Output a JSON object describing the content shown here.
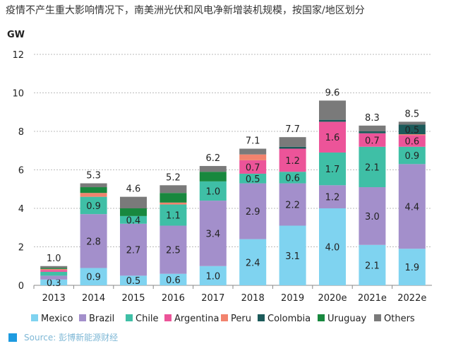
{
  "title": "疫情不产生重大影响情况下，南美洲光伏和风电净新增装机规模，按国家/地区划分",
  "source": "Source: 彭博新能源财经",
  "chart_data": {
    "type": "bar",
    "stacked": true,
    "title": "疫情不产生重大影响情况下，南美洲光伏和风电净新增装机规模，按国家/地区划分",
    "ylabel": "GW",
    "ylim": [
      0,
      12
    ],
    "yticks": [
      0,
      2,
      4,
      6,
      8,
      10,
      12
    ],
    "grid": true,
    "legend": "bottom",
    "categories": [
      "2013",
      "2014",
      "2015",
      "2016",
      "2017",
      "2018",
      "2019",
      "2020e",
      "2021e",
      "2022e"
    ],
    "totals": [
      "1.0",
      "5.3",
      "4.6",
      "5.2",
      "6.2",
      "7.1",
      "7.7",
      "9.6",
      "8.3",
      "8.5"
    ],
    "series": [
      {
        "name": "Mexico",
        "color": "#7fd3f0",
        "values": [
          0.3,
          0.9,
          0.5,
          0.6,
          1.0,
          2.4,
          3.1,
          4.0,
          2.1,
          1.9
        ],
        "labels": [
          "0.3",
          "0.9",
          "0.5",
          "0.6",
          "1.0",
          "2.4",
          "3.1",
          "4.0",
          "2.1",
          "1.9"
        ]
      },
      {
        "name": "Brazil",
        "color": "#a38fcb",
        "values": [
          0.2,
          2.8,
          2.7,
          2.5,
          3.4,
          2.9,
          2.2,
          1.2,
          3.0,
          4.4
        ],
        "labels": [
          null,
          "2.8",
          "2.7",
          "2.5",
          "3.4",
          "2.9",
          "2.2",
          "1.2",
          "3.0",
          "4.4"
        ]
      },
      {
        "name": "Chile",
        "color": "#3fbfa6",
        "values": [
          0.2,
          0.9,
          0.4,
          1.1,
          1.0,
          0.5,
          0.6,
          1.7,
          2.1,
          0.9
        ],
        "labels": [
          null,
          "0.9",
          "0.4",
          "1.1",
          "1.0",
          "0.5",
          "0.6",
          "1.7",
          "2.1",
          "0.9"
        ]
      },
      {
        "name": "Argentina",
        "color": "#ec5499",
        "values": [
          0.1,
          0,
          0,
          0,
          0,
          0.7,
          1.2,
          1.6,
          0.7,
          0.6
        ],
        "labels": [
          null,
          null,
          null,
          null,
          null,
          "0.7",
          "1.2",
          "1.6",
          "0.7",
          "0.6"
        ]
      },
      {
        "name": "Peru",
        "color": "#f2836e",
        "values": [
          0.05,
          0.2,
          0,
          0.1,
          0,
          0.3,
          0,
          0,
          0,
          0.05
        ],
        "labels": [
          null,
          null,
          null,
          null,
          null,
          null,
          null,
          null,
          null,
          null
        ]
      },
      {
        "name": "Colombia",
        "color": "#1c5a5a",
        "values": [
          0,
          0,
          0,
          0,
          0,
          0,
          0.1,
          0.1,
          0.1,
          0.5
        ],
        "labels": [
          null,
          null,
          null,
          null,
          null,
          null,
          null,
          null,
          null,
          "0.5"
        ]
      },
      {
        "name": "Uruguay",
        "color": "#18883e",
        "values": [
          0.05,
          0.3,
          0.4,
          0.5,
          0.5,
          0,
          0,
          0,
          0,
          0
        ],
        "labels": [
          null,
          null,
          null,
          null,
          null,
          null,
          null,
          null,
          null,
          null
        ]
      },
      {
        "name": "Others",
        "color": "#7a7a7a",
        "values": [
          0.1,
          0.2,
          0.6,
          0.4,
          0.3,
          0.3,
          0.5,
          1.0,
          0.3,
          0.15
        ],
        "labels": [
          null,
          null,
          null,
          null,
          null,
          null,
          null,
          null,
          null,
          null
        ]
      }
    ]
  }
}
